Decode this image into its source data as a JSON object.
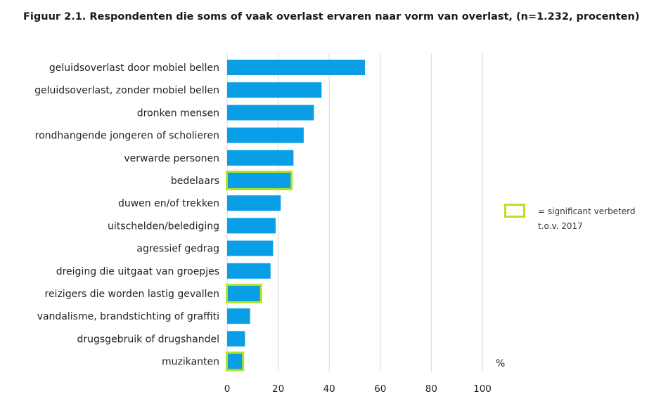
{
  "title": "Figuur 2.1. Respondenten die soms of vaak overlast ervaren naar vorm van overlast, (n=1.232, procenten)",
  "legend": {
    "line1": "= significant verbeterd",
    "line2": "t.o.v. 2017"
  },
  "unit": "%",
  "colors": {
    "bar": "#0a9ee6",
    "highlight": "#b7e21f",
    "grid": "#d9d9d9"
  },
  "chart_data": {
    "type": "bar",
    "orientation": "horizontal",
    "title": "Figuur 2.1. Respondenten die soms of vaak overlast ervaren naar vorm van overlast, (n=1.232, procenten)",
    "xlabel": "%",
    "xlim": [
      0,
      100
    ],
    "ticks": [
      0,
      20,
      40,
      60,
      80,
      100
    ],
    "grid": true,
    "legend_position": "right",
    "categories": [
      "geluidsoverlast door mobiel bellen",
      "geluidsoverlast, zonder mobiel bellen",
      "dronken mensen",
      "rondhangende jongeren of scholieren",
      "verwarde personen",
      "bedelaars",
      "duwen en/of trekken",
      "uitschelden/belediging",
      "agressief gedrag",
      "dreiging die uitgaat van groepjes",
      "reizigers die worden lastig gevallen",
      "vandalisme, brandstichting of graffiti",
      "drugsgebruik of drugshandel",
      "muzikanten"
    ],
    "values": [
      54,
      37,
      34,
      30,
      26,
      25,
      21,
      19,
      18,
      17,
      13,
      9,
      7,
      6
    ],
    "significant_improved": [
      false,
      false,
      false,
      false,
      false,
      true,
      false,
      false,
      false,
      false,
      true,
      false,
      false,
      true
    ]
  }
}
